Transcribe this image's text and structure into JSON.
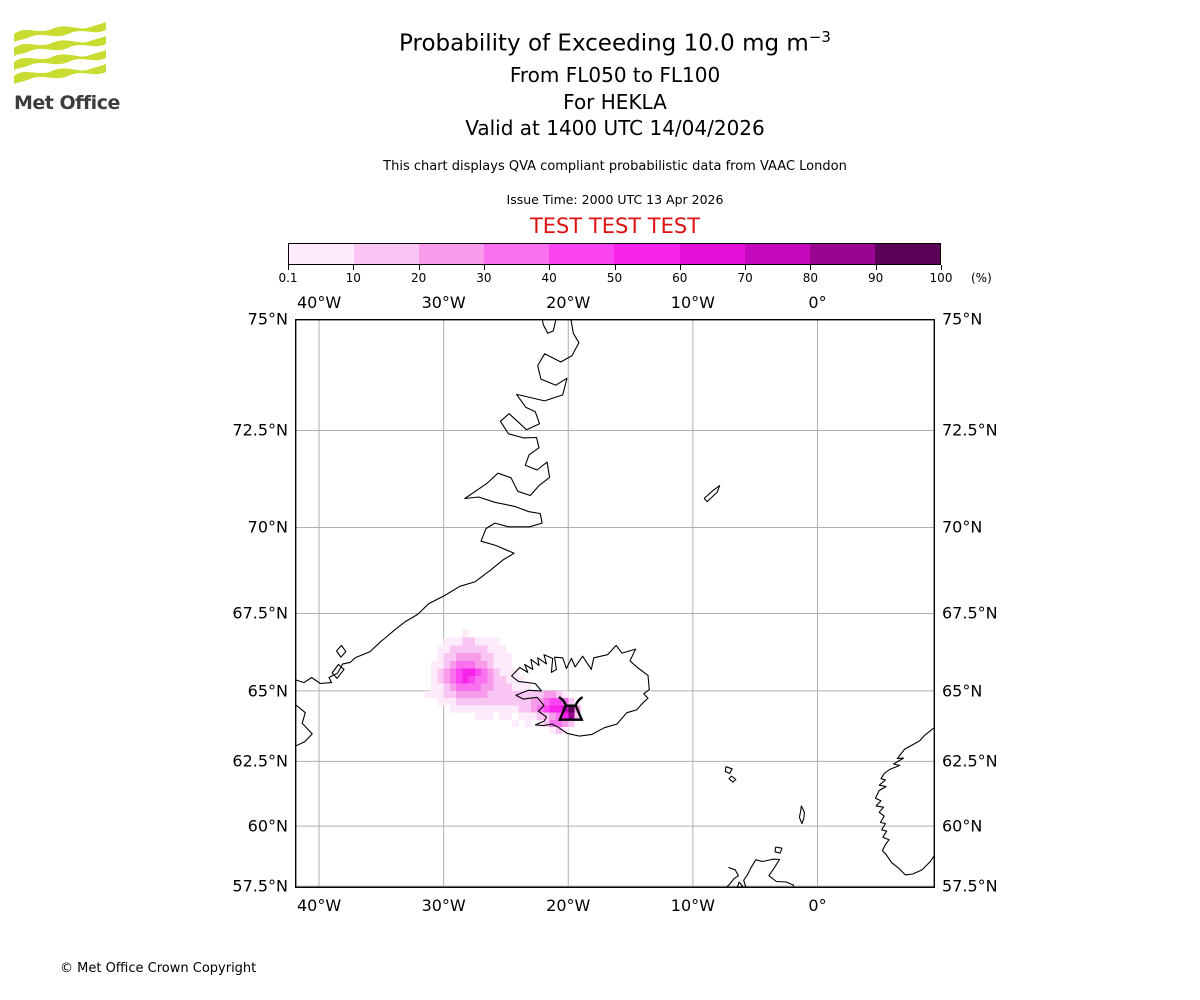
{
  "header": {
    "logo_text": "Met Office",
    "title": "Probability of Exceeding 10.0 mg m",
    "title_sup": "−3",
    "subtitle1": "From FL050 to FL100",
    "subtitle2": "For HEKLA",
    "subtitle3": "Valid at 1400 UTC 14/04/2026",
    "note": "This chart displays QVA compliant probabilistic data from VAAC London",
    "issue_time": "Issue Time: 2000 UTC 13 Apr 2026",
    "test_banner": "TEST TEST TEST",
    "test_color": "#dd1111",
    "logo_green": "#c8dc32"
  },
  "footer": {
    "copyright": "© Met Office Crown Copyright"
  },
  "chart_data": {
    "type": "heatmap",
    "title": "Probability of Exceeding 10.0 mg m−3",
    "colorbar": {
      "tick_labels": [
        "0.1",
        "10",
        "20",
        "30",
        "40",
        "50",
        "60",
        "70",
        "80",
        "90",
        "100"
      ],
      "levels_percent": [
        0.1,
        10,
        20,
        30,
        40,
        50,
        60,
        70,
        80,
        90,
        100
      ],
      "unit_label": "(%)",
      "colors": [
        "#fdeafb",
        "#f9c5f2",
        "#f79ceb",
        "#fa71ef",
        "#fb45f1",
        "#f724ea",
        "#e60edb",
        "#c408bb",
        "#990590",
        "#5c0357"
      ]
    },
    "map": {
      "projection": "mercator",
      "lon_range": [
        -41.93,
        9.43
      ],
      "lat_range": [
        57.42,
        75.0
      ],
      "lon_gridlines": [
        -40,
        -30,
        -20,
        -10,
        0
      ],
      "lon_tick_labels": [
        "40°W",
        "30°W",
        "20°W",
        "10°W",
        "0°"
      ],
      "lat_gridlines": [
        75,
        72.5,
        70,
        67.5,
        65,
        62.5,
        60,
        57.5
      ],
      "lat_tick_labels": [
        "75°N",
        "72.5°N",
        "70°N",
        "67.5°N",
        "65°N",
        "62.5°N",
        "60°N",
        "57.5°N"
      ],
      "grid_color": "#b0b0b0",
      "coast_color": "#000000"
    },
    "volcano": {
      "name": "HEKLA",
      "lon": -19.8,
      "lat": 64.25
    },
    "plume": {
      "comment": "probability grid; cell = dlon x dlat, value = color level 1-10 (a=10), 0=empty; row 0 top band lat0..lat0-dlat",
      "lon0": -31.5,
      "lat0": 67.0,
      "dlon": 0.5,
      "dlat": 0.25,
      "rows": [
        "0000001000000000000000000",
        "0001112211110000000000000",
        "0011222222111000000000000",
        "0012233332211100000000000",
        "0112344433211100000000000",
        "0123456654321110000000000",
        "0123456544322111000000000",
        "0112344443322211100000000",
        "1112233333222222222332100",
        "0011122222222222233455420",
        "00001111111111122345668a3",
        "0000000011101101112234692",
        "0000000000000010101244320",
        "0000000000000000000012100"
      ]
    },
    "coastlines": {
      "greenland_notch": [
        [
          -22.15,
          75.1
        ],
        [
          -22.0,
          74.88
        ],
        [
          -21.65,
          74.7
        ],
        [
          -21.2,
          74.75
        ],
        [
          -20.9,
          75.1
        ]
      ],
      "greenland_main": [
        [
          -19.85,
          75.1
        ],
        [
          -19.6,
          74.7
        ],
        [
          -19.15,
          74.5
        ],
        [
          -19.7,
          74.22
        ],
        [
          -20.6,
          74.08
        ],
        [
          -21.9,
          74.26
        ],
        [
          -22.45,
          74.0
        ],
        [
          -22.2,
          73.7
        ],
        [
          -21.0,
          73.56
        ],
        [
          -20.1,
          73.72
        ],
        [
          -20.45,
          73.34
        ],
        [
          -21.9,
          73.2
        ],
        [
          -24.15,
          73.35
        ],
        [
          -23.4,
          73.05
        ],
        [
          -22.65,
          72.95
        ],
        [
          -22.3,
          72.66
        ],
        [
          -23.35,
          72.52
        ],
        [
          -24.75,
          72.9
        ],
        [
          -25.45,
          72.72
        ],
        [
          -24.8,
          72.42
        ],
        [
          -23.6,
          72.32
        ],
        [
          -22.55,
          72.33
        ],
        [
          -22.35,
          72.08
        ],
        [
          -23.15,
          71.9
        ],
        [
          -23.45,
          71.64
        ],
        [
          -22.5,
          71.52
        ],
        [
          -21.7,
          71.72
        ],
        [
          -21.5,
          71.33
        ],
        [
          -22.35,
          71.12
        ],
        [
          -23.05,
          70.86
        ],
        [
          -24.05,
          70.97
        ],
        [
          -24.6,
          71.32
        ],
        [
          -25.65,
          71.44
        ],
        [
          -26.55,
          71.17
        ],
        [
          -28.3,
          70.78
        ],
        [
          -27.2,
          70.82
        ],
        [
          -25.9,
          70.68
        ],
        [
          -24.3,
          70.57
        ],
        [
          -23.15,
          70.43
        ],
        [
          -22.25,
          70.38
        ],
        [
          -22.1,
          70.12
        ],
        [
          -23.1,
          70.02
        ],
        [
          -24.8,
          70.02
        ],
        [
          -25.9,
          70.12
        ],
        [
          -26.6,
          69.97
        ],
        [
          -27.0,
          69.62
        ],
        [
          -25.8,
          69.5
        ],
        [
          -24.35,
          69.28
        ],
        [
          -25.2,
          69.1
        ],
        [
          -26.3,
          68.78
        ],
        [
          -27.5,
          68.45
        ],
        [
          -28.7,
          68.32
        ],
        [
          -29.9,
          68.05
        ],
        [
          -31.2,
          67.8
        ],
        [
          -32.1,
          67.47
        ],
        [
          -33.1,
          67.24
        ],
        [
          -33.9,
          67.0
        ],
        [
          -35.1,
          66.6
        ],
        [
          -35.9,
          66.3
        ],
        [
          -37.1,
          66.1
        ],
        [
          -37.5,
          65.95
        ],
        [
          -38.1,
          65.9
        ],
        [
          -38.5,
          65.6
        ],
        [
          -39.2,
          65.45
        ],
        [
          -39.0,
          65.28
        ],
        [
          -39.9,
          65.25
        ],
        [
          -40.6,
          65.45
        ],
        [
          -41.2,
          65.28
        ],
        [
          -41.95,
          65.38
        ]
      ],
      "greenland_sw": [
        [
          -41.95,
          64.55
        ],
        [
          -41.1,
          64.25
        ],
        [
          -41.35,
          63.88
        ],
        [
          -40.55,
          63.5
        ],
        [
          -41.15,
          63.22
        ],
        [
          -41.95,
          63.05
        ]
      ],
      "ammassalik_1": [
        [
          -38.6,
          66.32
        ],
        [
          -38.2,
          66.5
        ],
        [
          -37.85,
          66.3
        ],
        [
          -38.25,
          66.12
        ],
        [
          -38.6,
          66.32
        ]
      ],
      "ammassalik_2": [
        [
          -38.95,
          65.6
        ],
        [
          -38.45,
          65.88
        ],
        [
          -38.0,
          65.72
        ],
        [
          -38.55,
          65.42
        ],
        [
          -38.95,
          65.6
        ]
      ],
      "iceland": [
        [
          -22.65,
          63.82
        ],
        [
          -21.95,
          63.95
        ],
        [
          -21.75,
          64.1
        ],
        [
          -22.4,
          64.3
        ],
        [
          -21.95,
          64.5
        ],
        [
          -22.5,
          64.78
        ],
        [
          -23.6,
          64.72
        ],
        [
          -24.2,
          64.85
        ],
        [
          -23.2,
          65.02
        ],
        [
          -22.15,
          65.0
        ],
        [
          -22.65,
          65.25
        ],
        [
          -24.0,
          65.32
        ],
        [
          -24.55,
          65.5
        ],
        [
          -23.9,
          65.78
        ],
        [
          -23.25,
          65.62
        ],
        [
          -23.5,
          65.88
        ],
        [
          -22.85,
          65.72
        ],
        [
          -23.0,
          66.05
        ],
        [
          -22.35,
          65.85
        ],
        [
          -22.45,
          66.1
        ],
        [
          -21.75,
          65.9
        ],
        [
          -21.95,
          66.2
        ],
        [
          -21.25,
          66.08
        ],
        [
          -21.35,
          65.62
        ],
        [
          -20.95,
          65.72
        ],
        [
          -21.1,
          66.12
        ],
        [
          -20.45,
          66.1
        ],
        [
          -20.15,
          65.75
        ],
        [
          -19.75,
          66.08
        ],
        [
          -19.45,
          65.8
        ],
        [
          -18.85,
          66.15
        ],
        [
          -18.15,
          65.72
        ],
        [
          -17.95,
          66.1
        ],
        [
          -16.85,
          66.2
        ],
        [
          -16.15,
          66.5
        ],
        [
          -15.7,
          66.25
        ],
        [
          -14.6,
          66.38
        ],
        [
          -15.05,
          66.0
        ],
        [
          -14.45,
          65.78
        ],
        [
          -13.6,
          65.52
        ],
        [
          -13.5,
          65.05
        ],
        [
          -13.95,
          64.9
        ],
        [
          -13.6,
          64.75
        ],
        [
          -14.1,
          64.55
        ],
        [
          -14.5,
          64.35
        ],
        [
          -15.3,
          64.25
        ],
        [
          -16.1,
          63.85
        ],
        [
          -17.1,
          63.72
        ],
        [
          -18.1,
          63.48
        ],
        [
          -19.1,
          63.42
        ],
        [
          -20.1,
          63.52
        ],
        [
          -20.75,
          63.72
        ],
        [
          -21.3,
          63.85
        ],
        [
          -22.0,
          63.8
        ],
        [
          -22.65,
          63.82
        ]
      ],
      "jan_mayen": [
        [
          -9.1,
          70.78
        ],
        [
          -8.35,
          71.0
        ],
        [
          -7.85,
          71.12
        ],
        [
          -8.05,
          70.95
        ],
        [
          -8.85,
          70.7
        ],
        [
          -9.1,
          70.78
        ]
      ],
      "norway": [
        [
          9.45,
          63.75
        ],
        [
          8.6,
          63.45
        ],
        [
          8.2,
          63.25
        ],
        [
          7.6,
          63.1
        ],
        [
          7.0,
          62.95
        ],
        [
          6.4,
          62.6
        ],
        [
          6.9,
          62.62
        ],
        [
          6.1,
          62.4
        ],
        [
          6.6,
          62.35
        ],
        [
          5.8,
          62.2
        ],
        [
          5.35,
          62.05
        ],
        [
          5.1,
          61.85
        ],
        [
          5.45,
          61.8
        ],
        [
          4.95,
          61.6
        ],
        [
          5.5,
          61.55
        ],
        [
          4.95,
          61.4
        ],
        [
          4.65,
          61.1
        ],
        [
          5.1,
          61.0
        ],
        [
          4.7,
          60.8
        ],
        [
          5.3,
          60.75
        ],
        [
          4.95,
          60.55
        ],
        [
          5.35,
          60.4
        ],
        [
          5.05,
          60.15
        ],
        [
          5.45,
          60.1
        ],
        [
          5.15,
          59.85
        ],
        [
          5.55,
          59.8
        ],
        [
          5.25,
          59.55
        ],
        [
          5.75,
          59.45
        ],
        [
          5.45,
          59.25
        ],
        [
          5.2,
          59.0
        ],
        [
          5.5,
          58.85
        ],
        [
          5.95,
          58.5
        ],
        [
          6.55,
          58.25
        ],
        [
          7.05,
          57.98
        ],
        [
          7.65,
          58.02
        ],
        [
          8.4,
          58.2
        ],
        [
          9.05,
          58.55
        ],
        [
          9.45,
          58.85
        ]
      ],
      "faroe_1": [
        [
          -7.35,
          62.3
        ],
        [
          -6.85,
          62.22
        ],
        [
          -7.05,
          62.05
        ],
        [
          -7.4,
          62.12
        ],
        [
          -7.35,
          62.3
        ]
      ],
      "faroe_2": [
        [
          -6.9,
          61.95
        ],
        [
          -6.55,
          61.82
        ],
        [
          -6.8,
          61.72
        ],
        [
          -7.1,
          61.85
        ],
        [
          -6.9,
          61.95
        ]
      ],
      "shetland": [
        [
          -1.3,
          60.8
        ],
        [
          -1.05,
          60.55
        ],
        [
          -1.1,
          60.3
        ],
        [
          -1.25,
          60.1
        ],
        [
          -1.45,
          60.35
        ],
        [
          -1.35,
          60.6
        ],
        [
          -1.3,
          60.8
        ]
      ],
      "orkney": [
        [
          -3.35,
          59.15
        ],
        [
          -2.85,
          59.1
        ],
        [
          -3.0,
          58.9
        ],
        [
          -3.4,
          58.95
        ],
        [
          -3.35,
          59.15
        ]
      ],
      "scotland": [
        [
          -5.7,
          57.36
        ],
        [
          -5.92,
          57.75
        ],
        [
          -5.55,
          58.05
        ],
        [
          -5.35,
          58.28
        ],
        [
          -4.95,
          58.62
        ],
        [
          -4.4,
          58.55
        ],
        [
          -3.55,
          58.65
        ],
        [
          -3.05,
          58.63
        ],
        [
          -3.45,
          58.3
        ],
        [
          -3.9,
          57.95
        ],
        [
          -3.3,
          57.7
        ],
        [
          -2.5,
          57.68
        ],
        [
          -1.95,
          57.55
        ],
        [
          -1.85,
          57.36
        ]
      ],
      "hebrides": [
        [
          -7.15,
          58.3
        ],
        [
          -6.6,
          58.2
        ],
        [
          -6.35,
          57.95
        ],
        [
          -6.7,
          57.82
        ],
        [
          -7.0,
          57.62
        ],
        [
          -7.35,
          57.42
        ],
        [
          -7.25,
          57.36
        ]
      ],
      "skye": [
        [
          -6.3,
          57.68
        ],
        [
          -6.0,
          57.5
        ],
        [
          -6.45,
          57.38
        ],
        [
          -6.3,
          57.68
        ]
      ]
    }
  }
}
